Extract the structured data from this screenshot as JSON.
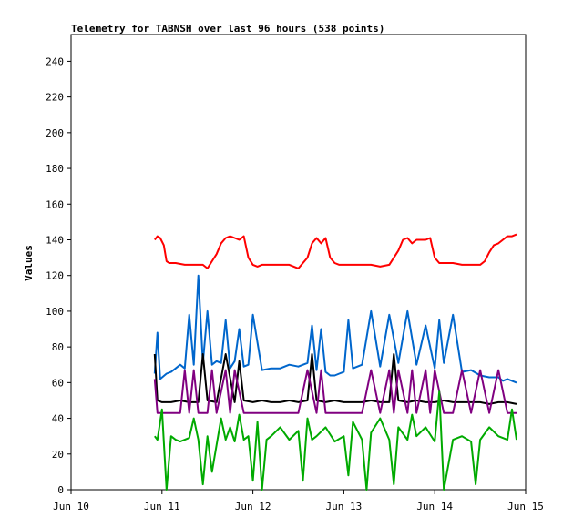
{
  "chart_data": {
    "type": "line",
    "title": "Telemetry for TABNSH over last 96 hours (538 points)",
    "xlabel": "",
    "ylabel": "Values",
    "x_ticks": [
      "Jun 10",
      "Jun 11",
      "Jun 12",
      "Jun 13",
      "Jun 14",
      "Jun 15"
    ],
    "xlim": [
      "Jun 10",
      "Jun 15"
    ],
    "y_ticks": [
      0,
      20,
      40,
      60,
      80,
      100,
      120,
      140,
      160,
      180,
      200,
      220,
      240
    ],
    "ylim": [
      0,
      255
    ],
    "grid": false,
    "colors": {
      "red": "#ff0000",
      "blue": "#0066cc",
      "black": "#000000",
      "purple": "#800080",
      "green": "#00aa00",
      "axis": "#000000"
    },
    "series": [
      {
        "color_key": "red",
        "x_days": [
          0.92,
          0.95,
          0.98,
          1.02,
          1.05,
          1.08,
          1.15,
          1.25,
          1.35,
          1.45,
          1.5,
          1.55,
          1.6,
          1.65,
          1.7,
          1.75,
          1.8,
          1.85,
          1.9,
          1.95,
          2.0,
          2.05,
          2.1,
          2.2,
          2.3,
          2.4,
          2.5,
          2.6,
          2.65,
          2.7,
          2.75,
          2.8,
          2.85,
          2.9,
          2.95,
          3.0,
          3.1,
          3.2,
          3.3,
          3.4,
          3.5,
          3.6,
          3.65,
          3.7,
          3.75,
          3.8,
          3.85,
          3.9,
          3.95,
          4.0,
          4.05,
          4.1,
          4.2,
          4.3,
          4.4,
          4.5,
          4.55,
          4.6,
          4.65,
          4.7,
          4.75,
          4.8,
          4.85,
          4.9
        ],
        "y": [
          140,
          142,
          141,
          137,
          128,
          127,
          127,
          126,
          126,
          126,
          124,
          128,
          132,
          138,
          141,
          142,
          141,
          140,
          142,
          130,
          126,
          125,
          126,
          126,
          126,
          126,
          124,
          130,
          138,
          141,
          138,
          141,
          130,
          127,
          126,
          126,
          126,
          126,
          126,
          125,
          126,
          134,
          140,
          141,
          138,
          140,
          140,
          140,
          141,
          130,
          127,
          127,
          127,
          126,
          126,
          126,
          128,
          133,
          137,
          138,
          140,
          142,
          142,
          143
        ]
      },
      {
        "color_key": "blue",
        "x_days": [
          0.92,
          0.95,
          0.98,
          1.05,
          1.1,
          1.15,
          1.2,
          1.25,
          1.3,
          1.35,
          1.4,
          1.45,
          1.5,
          1.55,
          1.6,
          1.65,
          1.7,
          1.75,
          1.8,
          1.85,
          1.9,
          1.95,
          2.0,
          2.1,
          2.2,
          2.3,
          2.4,
          2.5,
          2.6,
          2.65,
          2.7,
          2.75,
          2.8,
          2.85,
          2.9,
          2.95,
          3.0,
          3.05,
          3.1,
          3.2,
          3.3,
          3.4,
          3.5,
          3.6,
          3.7,
          3.8,
          3.9,
          4.0,
          4.05,
          4.1,
          4.2,
          4.3,
          4.4,
          4.5,
          4.6,
          4.7,
          4.75,
          4.8,
          4.85,
          4.9
        ],
        "y": [
          65,
          88,
          62,
          65,
          66,
          68,
          70,
          68,
          98,
          70,
          120,
          71,
          100,
          70,
          72,
          71,
          95,
          68,
          72,
          90,
          69,
          70,
          98,
          67,
          68,
          68,
          70,
          69,
          71,
          92,
          67,
          90,
          66,
          64,
          64,
          65,
          66,
          95,
          68,
          70,
          100,
          69,
          98,
          71,
          100,
          70,
          92,
          68,
          95,
          71,
          98,
          66,
          67,
          64,
          63,
          63,
          61,
          62,
          61,
          60
        ]
      },
      {
        "color_key": "black",
        "x_days": [
          0.92,
          0.95,
          1.0,
          1.1,
          1.2,
          1.3,
          1.4,
          1.45,
          1.5,
          1.6,
          1.7,
          1.8,
          1.85,
          1.9,
          2.0,
          2.1,
          2.2,
          2.3,
          2.4,
          2.5,
          2.6,
          2.65,
          2.7,
          2.8,
          2.9,
          3.0,
          3.1,
          3.2,
          3.3,
          3.4,
          3.5,
          3.55,
          3.6,
          3.7,
          3.8,
          3.9,
          4.0,
          4.1,
          4.2,
          4.3,
          4.4,
          4.5,
          4.6,
          4.7,
          4.8,
          4.9
        ],
        "y": [
          76,
          50,
          49,
          49,
          50,
          49,
          49,
          76,
          50,
          49,
          76,
          49,
          72,
          50,
          49,
          50,
          49,
          49,
          50,
          49,
          50,
          76,
          50,
          49,
          50,
          49,
          49,
          49,
          50,
          49,
          49,
          76,
          50,
          49,
          50,
          49,
          49,
          50,
          49,
          49,
          49,
          49,
          48,
          49,
          49,
          48
        ]
      },
      {
        "color_key": "purple",
        "x_days": [
          0.92,
          0.95,
          1.0,
          1.1,
          1.2,
          1.25,
          1.3,
          1.35,
          1.4,
          1.5,
          1.55,
          1.6,
          1.7,
          1.75,
          1.8,
          1.9,
          2.0,
          2.1,
          2.2,
          2.3,
          2.4,
          2.5,
          2.6,
          2.7,
          2.75,
          2.8,
          2.9,
          3.0,
          3.1,
          3.2,
          3.3,
          3.4,
          3.5,
          3.55,
          3.6,
          3.7,
          3.75,
          3.8,
          3.9,
          3.95,
          4.0,
          4.1,
          4.2,
          4.3,
          4.4,
          4.5,
          4.6,
          4.7,
          4.8,
          4.9
        ],
        "y": [
          62,
          43,
          43,
          43,
          43,
          67,
          43,
          67,
          43,
          43,
          67,
          43,
          67,
          43,
          67,
          43,
          43,
          43,
          43,
          43,
          43,
          43,
          67,
          43,
          67,
          43,
          43,
          43,
          43,
          43,
          67,
          43,
          67,
          43,
          67,
          43,
          67,
          43,
          67,
          43,
          67,
          43,
          43,
          67,
          43,
          67,
          43,
          67,
          43,
          43
        ]
      },
      {
        "color_key": "green",
        "x_days": [
          0.92,
          0.95,
          1.0,
          1.05,
          1.1,
          1.15,
          1.2,
          1.25,
          1.3,
          1.35,
          1.4,
          1.45,
          1.5,
          1.55,
          1.6,
          1.65,
          1.7,
          1.75,
          1.8,
          1.85,
          1.9,
          1.95,
          2.0,
          2.05,
          2.1,
          2.15,
          2.2,
          2.3,
          2.4,
          2.5,
          2.55,
          2.6,
          2.65,
          2.7,
          2.8,
          2.9,
          3.0,
          3.05,
          3.1,
          3.2,
          3.25,
          3.3,
          3.4,
          3.5,
          3.55,
          3.6,
          3.7,
          3.75,
          3.8,
          3.9,
          4.0,
          4.05,
          4.1,
          4.2,
          4.3,
          4.4,
          4.45,
          4.5,
          4.6,
          4.7,
          4.8,
          4.85,
          4.9
        ],
        "y": [
          30,
          28,
          45,
          0,
          30,
          28,
          27,
          28,
          29,
          40,
          28,
          3,
          30,
          10,
          25,
          40,
          28,
          35,
          27,
          42,
          28,
          30,
          5,
          38,
          0,
          28,
          30,
          35,
          28,
          33,
          5,
          40,
          28,
          30,
          35,
          27,
          30,
          8,
          38,
          28,
          0,
          32,
          40,
          28,
          3,
          35,
          28,
          42,
          30,
          35,
          27,
          55,
          0,
          28,
          30,
          27,
          3,
          28,
          35,
          30,
          28,
          45,
          28
        ]
      }
    ]
  }
}
